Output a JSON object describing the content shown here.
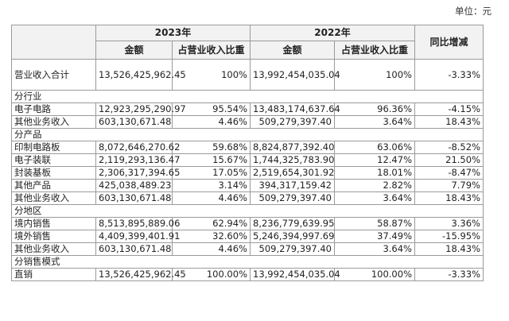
{
  "unit_label": "单位：元",
  "headers": {
    "year_2023": "2023年",
    "year_2022": "2022年",
    "yoy": "同比增减",
    "amount": "金额",
    "ratio": "占营业收入比重"
  },
  "total": {
    "label": "营业收入合计",
    "amount_2023": "13,526,425,962.45",
    "ratio_2023": "100%",
    "amount_2022": "13,992,454,035.04",
    "ratio_2022": "100%",
    "yoy": "-3.33%"
  },
  "sections": [
    {
      "title": "分行业",
      "rows": [
        {
          "label": "电子电路",
          "amount_2023": "12,923,295,290.97",
          "ratio_2023": "95.54%",
          "amount_2022": "13,483,174,637.64",
          "ratio_2022": "96.36%",
          "yoy": "-4.15%"
        },
        {
          "label": "其他业务收入",
          "amount_2023": "603,130,671.48",
          "ratio_2023": "4.46%",
          "amount_2022": "509,279,397.40",
          "ratio_2022": "3.64%",
          "yoy": "18.43%"
        }
      ]
    },
    {
      "title": "分产品",
      "rows": [
        {
          "label": "印制电路板",
          "amount_2023": "8,072,646,270.62",
          "ratio_2023": "59.68%",
          "amount_2022": "8,824,877,392.40",
          "ratio_2022": "63.06%",
          "yoy": "-8.52%"
        },
        {
          "label": "电子装联",
          "amount_2023": "2,119,293,136.47",
          "ratio_2023": "15.67%",
          "amount_2022": "1,744,325,783.90",
          "ratio_2022": "12.47%",
          "yoy": "21.50%"
        },
        {
          "label": "封装基板",
          "amount_2023": "2,306,317,394.65",
          "ratio_2023": "17.05%",
          "amount_2022": "2,519,654,301.92",
          "ratio_2022": "18.01%",
          "yoy": "-8.47%"
        },
        {
          "label": "其他产品",
          "amount_2023": "425,038,489.23",
          "ratio_2023": "3.14%",
          "amount_2022": "394,317,159.42",
          "ratio_2022": "2.82%",
          "yoy": "7.79%"
        },
        {
          "label": "其他业务收入",
          "amount_2023": "603,130,671.48",
          "ratio_2023": "4.46%",
          "amount_2022": "509,279,397.40",
          "ratio_2022": "3.64%",
          "yoy": "18.43%"
        }
      ]
    },
    {
      "title": "分地区",
      "rows": [
        {
          "label": "境内销售",
          "amount_2023": "8,513,895,889.06",
          "ratio_2023": "62.94%",
          "amount_2022": "8,236,779,639.95",
          "ratio_2022": "58.87%",
          "yoy": "3.36%"
        },
        {
          "label": "境外销售",
          "amount_2023": "4,409,399,401.91",
          "ratio_2023": "32.60%",
          "amount_2022": "5,246,394,997.69",
          "ratio_2022": "37.49%",
          "yoy": "-15.95%"
        },
        {
          "label": "其他业务收入",
          "amount_2023": "603,130,671.48",
          "ratio_2023": "4.46%",
          "amount_2022": "509,279,397.40",
          "ratio_2022": "3.64%",
          "yoy": "18.43%"
        }
      ]
    },
    {
      "title": "分销售模式",
      "rows": [
        {
          "label": "直销",
          "amount_2023": "13,526,425,962.45",
          "ratio_2023": "100.00%",
          "amount_2022": "13,992,454,035.04",
          "ratio_2022": "100.00%",
          "yoy": "-3.33%"
        }
      ]
    }
  ]
}
